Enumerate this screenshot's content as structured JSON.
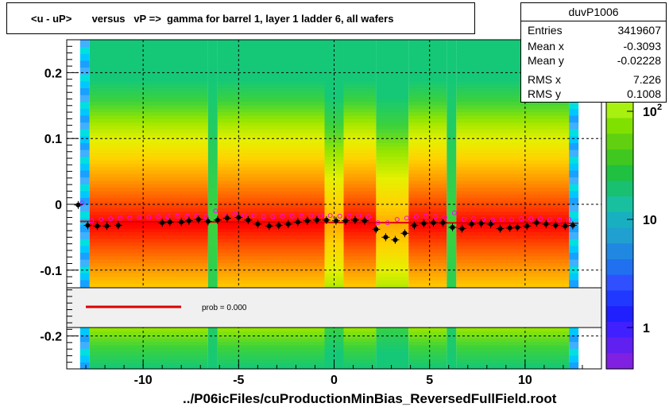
{
  "header": {
    "title": "<u - uP>       versus   vP =>  gamma for barrel 1, layer 1 ladder 6, all wafers"
  },
  "stats": {
    "name": "duvP1006",
    "rows": [
      {
        "key": "Entries",
        "value": "3419607"
      },
      {
        "key": "Mean x",
        "value": "-0.3093"
      },
      {
        "key": "Mean y",
        "value": "-0.02228"
      },
      {
        "key": "RMS x",
        "value": "7.226"
      },
      {
        "key": "RMS y",
        "value": "0.1008"
      }
    ]
  },
  "legend": {
    "label": "prob = 0.000",
    "line_color": "#dd0000"
  },
  "footer": {
    "filename": "../P06icFiles/cuProductionMinBias_ReversedFullField.root"
  },
  "colors": {
    "fit_line": "#dd0000",
    "profile_points": "#000000",
    "open_markers": "#ff00ff"
  },
  "chart_data": {
    "type": "heatmap",
    "title": "<u - uP>       versus   vP =>  gamma for barrel 1, layer 1 ladder 6, all wafers",
    "xlim": [
      -14,
      14
    ],
    "ylim": [
      -0.25,
      0.25
    ],
    "x_ticks": [
      -10,
      -5,
      0,
      5,
      10
    ],
    "y_ticks": [
      0.2,
      0.1,
      0,
      -0.1,
      -0.2
    ],
    "x_tick_labels": [
      "-10",
      "-5",
      "0",
      "5",
      "10"
    ],
    "y_tick_labels": [
      "0.2",
      "0.1",
      "0",
      "-0.1",
      "-0.2"
    ],
    "grid": true,
    "color_scale": {
      "type": "log",
      "tick_labels": [
        "1",
        "10",
        "10^2"
      ]
    },
    "columns": [
      {
        "x0": -13.3,
        "x1": -12.8,
        "kind": "edge"
      },
      {
        "x0": -12.8,
        "x1": -6.6,
        "kind": "dense"
      },
      {
        "x0": -6.6,
        "x1": -6.1,
        "kind": "gap"
      },
      {
        "x0": -6.1,
        "x1": -0.5,
        "kind": "dense"
      },
      {
        "x0": -0.5,
        "x1": 0.5,
        "kind": "light"
      },
      {
        "x0": 0.5,
        "x1": 2.2,
        "kind": "dense"
      },
      {
        "x0": 2.2,
        "x1": 3.9,
        "kind": "light"
      },
      {
        "x0": 3.9,
        "x1": 5.9,
        "kind": "dense"
      },
      {
        "x0": 5.9,
        "x1": 6.4,
        "kind": "gap"
      },
      {
        "x0": 6.4,
        "x1": 12.3,
        "kind": "dense"
      },
      {
        "x0": 12.3,
        "x1": 12.8,
        "kind": "edge"
      }
    ],
    "series": [
      {
        "marker": "filled-circle",
        "x": [
          -13.4,
          -12.9,
          -12.4,
          -11.9,
          -11.3,
          -9.0,
          -8.6,
          -8.0,
          -7.6,
          -7.1,
          -6.6,
          -6.1,
          -5.6,
          -5.0,
          -4.5,
          -4.0,
          -3.4,
          -2.9,
          -2.4,
          -1.9,
          -1.4,
          -0.9,
          -0.4,
          0.1,
          0.6,
          1.1,
          1.6,
          2.2,
          2.7,
          3.2,
          3.7,
          4.2,
          4.7,
          5.2,
          5.7,
          6.2,
          6.7,
          7.2,
          7.7,
          8.2,
          8.7,
          9.2,
          9.6,
          10.1,
          10.6,
          11.1,
          11.6,
          12.1,
          12.5
        ],
        "y": [
          -0.001,
          -0.032,
          -0.033,
          -0.033,
          -0.032,
          -0.028,
          -0.027,
          -0.027,
          -0.025,
          -0.023,
          -0.026,
          -0.024,
          -0.021,
          -0.02,
          -0.024,
          -0.03,
          -0.033,
          -0.032,
          -0.03,
          -0.027,
          -0.025,
          -0.024,
          -0.024,
          -0.025,
          -0.025,
          -0.024,
          -0.025,
          -0.038,
          -0.05,
          -0.054,
          -0.044,
          -0.032,
          -0.029,
          -0.028,
          -0.028,
          -0.035,
          -0.037,
          -0.03,
          -0.029,
          -0.03,
          -0.037,
          -0.036,
          -0.035,
          -0.033,
          -0.028,
          -0.03,
          -0.032,
          -0.033,
          -0.032
        ]
      },
      {
        "marker": "open-circle",
        "x": [
          -13.2,
          -12.7,
          -12.2,
          -11.7,
          -11.2,
          -10.7,
          -10.2,
          -9.7,
          -9.2,
          -8.7,
          -8.2,
          -7.7,
          -7.2,
          -6.7,
          -6.2,
          -5.7,
          -5.2,
          -4.7,
          -4.2,
          -3.7,
          -3.2,
          -2.7,
          -2.2,
          -1.7,
          -1.2,
          -0.7,
          -0.2,
          0.3,
          0.8,
          1.3,
          1.8,
          2.3,
          2.8,
          3.3,
          3.8,
          4.3,
          4.8,
          5.3,
          5.8,
          6.3,
          6.8,
          7.3,
          7.8,
          8.3,
          8.8,
          9.3,
          9.8,
          10.3,
          10.8,
          11.3,
          11.8,
          12.3
        ],
        "y": [
          0.002,
          -0.025,
          -0.023,
          -0.022,
          -0.021,
          -0.021,
          -0.02,
          -0.02,
          -0.019,
          -0.019,
          -0.018,
          -0.018,
          -0.018,
          -0.019,
          -0.01,
          -0.017,
          -0.015,
          -0.017,
          -0.017,
          -0.019,
          -0.019,
          -0.018,
          -0.018,
          -0.018,
          -0.017,
          -0.017,
          -0.017,
          -0.018,
          -0.018,
          -0.017,
          -0.019,
          -0.028,
          -0.028,
          -0.023,
          -0.021,
          -0.019,
          -0.018,
          -0.019,
          -0.02,
          -0.013,
          -0.023,
          -0.022,
          -0.023,
          -0.024,
          -0.023,
          -0.023,
          -0.022,
          -0.022,
          -0.022,
          -0.023,
          -0.024,
          -0.023
        ]
      },
      {
        "name": "",
        "marker": "line",
        "x": [
          -13.3,
          12.8
        ],
        "y": [
          -0.026,
          -0.029
        ]
      }
    ]
  }
}
